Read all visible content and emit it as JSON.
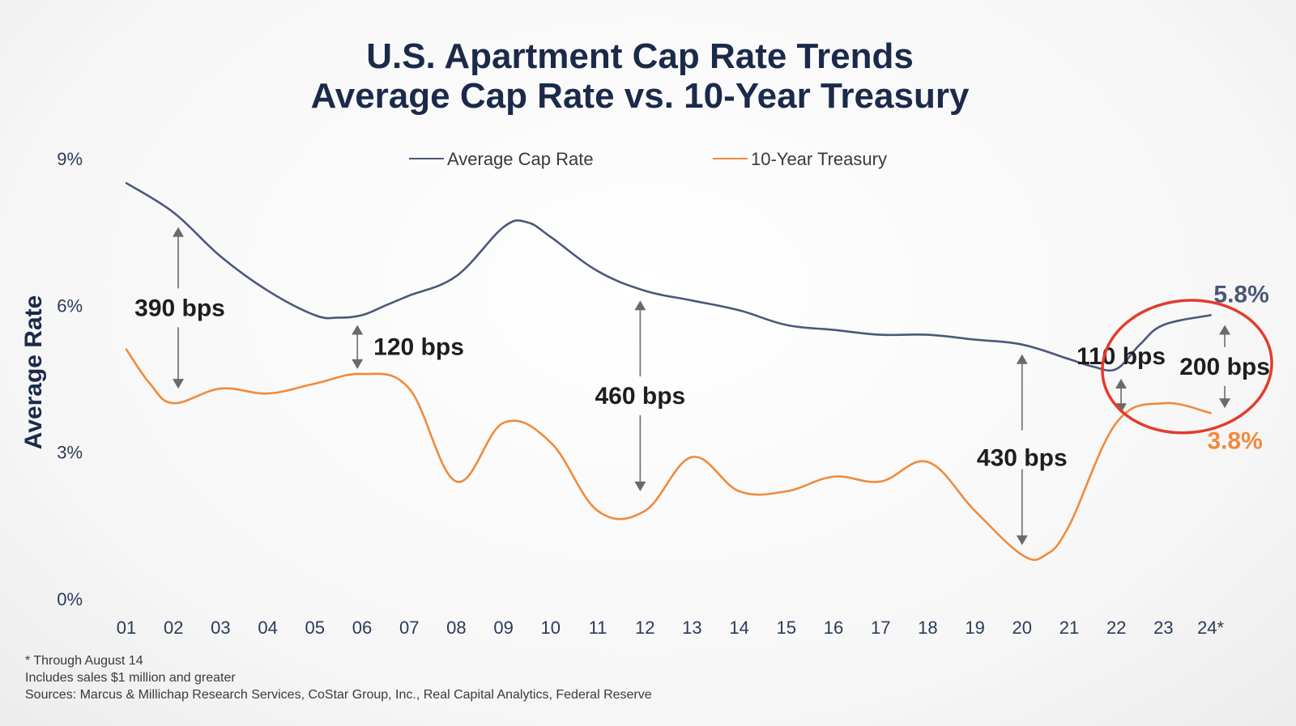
{
  "chart_data": {
    "type": "line",
    "title": [
      "U.S. Apartment Cap Rate Trends",
      "Average Cap Rate vs. 10-Year Treasury"
    ],
    "xlabel": "",
    "ylabel": "Average Rate",
    "ylim": [
      0,
      9
    ],
    "yticks": [
      "0%",
      "3%",
      "6%",
      "9%"
    ],
    "ytick_values": [
      0,
      3,
      6,
      9
    ],
    "categories": [
      "01",
      "02",
      "03",
      "04",
      "05",
      "06",
      "07",
      "08",
      "09",
      "10",
      "11",
      "12",
      "13",
      "14",
      "15",
      "16",
      "17",
      "18",
      "19",
      "20",
      "21",
      "22",
      "23",
      "24*"
    ],
    "x": [
      1,
      2,
      3,
      4,
      5,
      6,
      7,
      8,
      9,
      10,
      11,
      12,
      13,
      14,
      15,
      16,
      17,
      18,
      19,
      20,
      21,
      22,
      23,
      24
    ],
    "legend_position": "top-center",
    "grid": false,
    "series": [
      {
        "name": "Average Cap Rate",
        "color": "#4a5878",
        "x": [
          1,
          2,
          3,
          4,
          5,
          5.5,
          6,
          6.5,
          7,
          8,
          9,
          9.5,
          10,
          11,
          12,
          13,
          14,
          15,
          16,
          17,
          18,
          19,
          20,
          21,
          21.5,
          22,
          22.5,
          23,
          24
        ],
        "values": [
          8.5,
          7.9,
          7.0,
          6.3,
          5.8,
          5.75,
          5.8,
          6.0,
          6.2,
          6.6,
          7.6,
          7.7,
          7.4,
          6.7,
          6.3,
          6.1,
          5.9,
          5.6,
          5.5,
          5.4,
          5.4,
          5.3,
          5.2,
          4.9,
          4.75,
          4.7,
          5.2,
          5.6,
          5.8
        ]
      },
      {
        "name": "10-Year Treasury",
        "color": "#f08a3c",
        "x": [
          1,
          1.5,
          2,
          3,
          4,
          5,
          6,
          7,
          8,
          9,
          10,
          11,
          12,
          13,
          14,
          15,
          16,
          17,
          18,
          19,
          20,
          20.5,
          21,
          22,
          23,
          24
        ],
        "values": [
          5.1,
          4.4,
          4.0,
          4.3,
          4.2,
          4.4,
          4.6,
          4.3,
          2.4,
          3.6,
          3.2,
          1.8,
          1.8,
          2.9,
          2.2,
          2.2,
          2.5,
          2.4,
          2.8,
          1.8,
          0.9,
          0.9,
          1.5,
          3.6,
          4.0,
          3.8
        ]
      }
    ],
    "annotations": [
      {
        "label": "390 bps",
        "x": 2.1,
        "top": 7.6,
        "bottom": 4.3
      },
      {
        "label": "120 bps",
        "x": 5.9,
        "top": 5.6,
        "bottom": 4.7
      },
      {
        "label": "460 bps",
        "x": 11.9,
        "top": 6.1,
        "bottom": 2.2
      },
      {
        "label": "430 bps",
        "x": 20.0,
        "top": 5.0,
        "bottom": 1.1
      },
      {
        "label": "110 bps",
        "x": 22.1,
        "top": 4.5,
        "bottom": 3.8
      },
      {
        "label": "200 bps",
        "x": 24.3,
        "top": 5.6,
        "bottom": 3.9
      }
    ],
    "end_labels": {
      "cap": "5.8%",
      "treasury": "3.8%"
    },
    "highlight_ellipse": {
      "color": "#e43b2c",
      "x_range": [
        21.7,
        25.3
      ],
      "y_range": [
        3.4,
        6.1
      ]
    }
  },
  "notes": [
    "* Through August 14",
    "Includes sales $1 million and greater",
    "Sources: Marcus & Millichap Research Services, CoStar Group, Inc., Real Capital Analytics, Federal Reserve"
  ]
}
